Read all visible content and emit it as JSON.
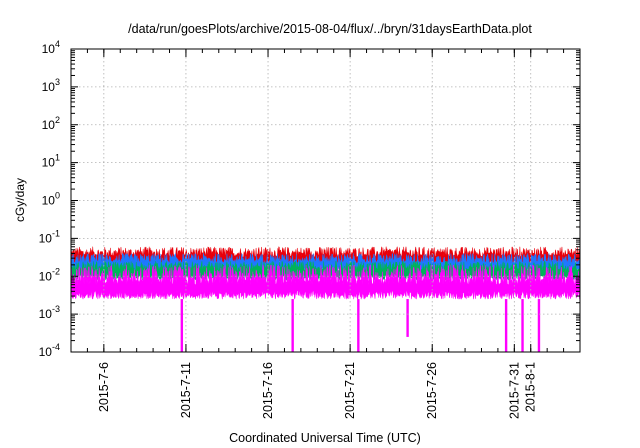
{
  "chart_data": {
    "type": "line",
    "title": "/data/run/goesPlots/archive/2015-08-04/flux/../bryn/31daysEarthData.plot",
    "xlabel": "Coordinated Universal Time (UTC)",
    "ylabel": "cGy/day",
    "yscale": "log",
    "ylim": [
      0.0001,
      10000
    ],
    "xlim": [
      "2015-07-04",
      "2015-08-04"
    ],
    "grid": true,
    "legend": "none",
    "y_ticks": [
      {
        "base": "10",
        "exp": "-4"
      },
      {
        "base": "10",
        "exp": "-3"
      },
      {
        "base": "10",
        "exp": "-2"
      },
      {
        "base": "10",
        "exp": "-1"
      },
      {
        "base": "10",
        "exp": "0"
      },
      {
        "base": "10",
        "exp": "1"
      },
      {
        "base": "10",
        "exp": "2"
      },
      {
        "base": "10",
        "exp": "3"
      },
      {
        "base": "10",
        "exp": "4"
      }
    ],
    "x_ticks": [
      {
        "date": "2015-07-06",
        "label": "2015-7-6"
      },
      {
        "date": "2015-07-11",
        "label": "2015-7-11"
      },
      {
        "date": "2015-07-16",
        "label": "2015-7-16"
      },
      {
        "date": "2015-07-21",
        "label": "2015-7-21"
      },
      {
        "date": "2015-07-26",
        "label": "2015-7-26"
      },
      {
        "date": "2015-07-31",
        "label": "2015-7-31"
      },
      {
        "date": "2015-08-01",
        "label": "2015-8-1"
      }
    ],
    "series": [
      {
        "color": "#e8000b",
        "typical": 0.032,
        "peak": 0.06,
        "floor": 0.02
      },
      {
        "color": "#1f77ff",
        "typical": 0.022,
        "peak": 0.04,
        "floor": 0.012
      },
      {
        "color": "#00b35a",
        "typical": 0.014,
        "peak": 0.025,
        "floor": 0.008
      },
      {
        "color": "#ff00ff",
        "typical": 0.006,
        "peak": 0.02,
        "floor": 0.0025
      }
    ],
    "drops": [
      {
        "date": "2015-07-10 18:00",
        "min": 0.0001
      },
      {
        "date": "2015-07-17 12:00",
        "min": 0.0001
      },
      {
        "date": "2015-07-21 12:00",
        "min": 0.0001
      },
      {
        "date": "2015-07-24 12:00",
        "min": 0.00025
      },
      {
        "date": "2015-07-30 12:00",
        "min": 0.0001
      },
      {
        "date": "2015-07-31 12:00",
        "min": 0.0001
      },
      {
        "date": "2015-08-01 12:00",
        "min": 0.0001
      }
    ]
  }
}
